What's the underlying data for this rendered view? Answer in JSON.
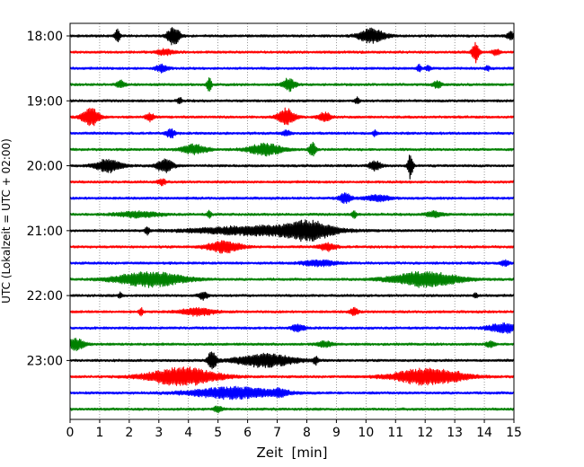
{
  "chart_data": {
    "type": "line",
    "title": "",
    "xlabel": "Zeit  [min]",
    "ylabel": "UTC (Lokalzeit = UTC + 02:00)",
    "xlim": [
      0,
      15
    ],
    "x_ticks": [
      "0",
      "1",
      "2",
      "3",
      "4",
      "5",
      "6",
      "7",
      "8",
      "9",
      "10",
      "11",
      "12",
      "13",
      "14",
      "15"
    ],
    "y_tick_labels": [
      "18:00",
      "19:00",
      "20:00",
      "21:00",
      "22:00",
      "23:00"
    ],
    "grid": "vertical dotted",
    "trace_colors": [
      "#000000",
      "#ff0000",
      "#0000ff",
      "#008000"
    ],
    "series": [
      {
        "start": "18:00",
        "color": "#000000",
        "events": [
          [
            1.6,
            0.7,
            0.06
          ],
          [
            3.5,
            1.0,
            0.15
          ],
          [
            10.2,
            0.8,
            0.3
          ],
          [
            14.9,
            0.4,
            0.1
          ]
        ]
      },
      {
        "start": "18:15",
        "color": "#ff0000",
        "events": [
          [
            3.2,
            0.3,
            0.2
          ],
          [
            13.7,
            1.1,
            0.08
          ],
          [
            14.4,
            0.3,
            0.1
          ]
        ]
      },
      {
        "start": "18:30",
        "color": "#0000ff",
        "events": [
          [
            3.1,
            0.4,
            0.15
          ],
          [
            11.8,
            0.4,
            0.05
          ],
          [
            12.1,
            0.3,
            0.05
          ],
          [
            14.1,
            0.3,
            0.05
          ]
        ]
      },
      {
        "start": "18:45",
        "color": "#008000",
        "events": [
          [
            1.7,
            0.4,
            0.1
          ],
          [
            4.7,
            0.9,
            0.05
          ],
          [
            7.4,
            0.7,
            0.15
          ],
          [
            12.4,
            0.4,
            0.1
          ]
        ]
      },
      {
        "start": "19:00",
        "color": "#000000",
        "events": [
          [
            3.7,
            0.4,
            0.05
          ],
          [
            9.7,
            0.4,
            0.05
          ]
        ]
      },
      {
        "start": "19:15",
        "color": "#ff0000",
        "events": [
          [
            0.7,
            1.0,
            0.2
          ],
          [
            2.7,
            0.4,
            0.1
          ],
          [
            7.3,
            0.9,
            0.2
          ],
          [
            8.6,
            0.5,
            0.15
          ]
        ]
      },
      {
        "start": "19:30",
        "color": "#0000ff",
        "events": [
          [
            3.4,
            0.5,
            0.1
          ],
          [
            7.3,
            0.3,
            0.1
          ],
          [
            10.3,
            0.3,
            0.05
          ]
        ]
      },
      {
        "start": "19:45",
        "color": "#008000",
        "events": [
          [
            4.2,
            0.5,
            0.3
          ],
          [
            6.6,
            0.6,
            0.4
          ],
          [
            8.2,
            0.8,
            0.08
          ]
        ]
      },
      {
        "start": "20:00",
        "color": "#000000",
        "events": [
          [
            1.3,
            0.7,
            0.3
          ],
          [
            3.2,
            0.7,
            0.2
          ],
          [
            10.3,
            0.5,
            0.15
          ],
          [
            11.5,
            1.5,
            0.06
          ]
        ]
      },
      {
        "start": "20:15",
        "color": "#ff0000",
        "events": [
          [
            3.1,
            0.3,
            0.1
          ]
        ]
      },
      {
        "start": "20:30",
        "color": "#0000ff",
        "events": [
          [
            9.3,
            0.5,
            0.15
          ],
          [
            10.4,
            0.3,
            0.3
          ]
        ]
      },
      {
        "start": "20:45",
        "color": "#008000",
        "events": [
          [
            2.3,
            0.3,
            0.5
          ],
          [
            4.7,
            0.4,
            0.05
          ],
          [
            9.6,
            0.5,
            0.05
          ],
          [
            12.3,
            0.3,
            0.2
          ]
        ]
      },
      {
        "start": "21:00",
        "color": "#000000",
        "events": [
          [
            2.6,
            0.4,
            0.05
          ],
          [
            6.5,
            0.5,
            1.5
          ],
          [
            8.1,
            0.9,
            0.5
          ]
        ]
      },
      {
        "start": "21:15",
        "color": "#ff0000",
        "events": [
          [
            5.2,
            0.6,
            0.4
          ],
          [
            8.7,
            0.4,
            0.2
          ]
        ]
      },
      {
        "start": "21:30",
        "color": "#0000ff",
        "events": [
          [
            8.4,
            0.3,
            0.4
          ],
          [
            14.7,
            0.3,
            0.1
          ]
        ]
      },
      {
        "start": "21:45",
        "color": "#008000",
        "events": [
          [
            2.7,
            0.8,
            0.8
          ],
          [
            12.0,
            0.8,
            0.8
          ]
        ]
      },
      {
        "start": "22:00",
        "color": "#000000",
        "events": [
          [
            1.7,
            0.3,
            0.05
          ],
          [
            4.5,
            0.4,
            0.1
          ],
          [
            13.7,
            0.3,
            0.05
          ]
        ]
      },
      {
        "start": "22:15",
        "color": "#ff0000",
        "events": [
          [
            2.4,
            0.4,
            0.05
          ],
          [
            4.3,
            0.4,
            0.4
          ],
          [
            9.6,
            0.4,
            0.1
          ]
        ]
      },
      {
        "start": "22:30",
        "color": "#0000ff",
        "events": [
          [
            7.7,
            0.4,
            0.15
          ],
          [
            14.7,
            0.5,
            0.4
          ]
        ]
      },
      {
        "start": "22:45",
        "color": "#008000",
        "events": [
          [
            0.2,
            0.6,
            0.2
          ],
          [
            8.6,
            0.3,
            0.2
          ],
          [
            14.2,
            0.3,
            0.1
          ]
        ]
      },
      {
        "start": "23:00",
        "color": "#000000",
        "events": [
          [
            4.8,
            1.1,
            0.1
          ],
          [
            6.6,
            0.7,
            0.7
          ],
          [
            8.3,
            0.5,
            0.05
          ]
        ]
      },
      {
        "start": "23:15",
        "color": "#ff0000",
        "events": [
          [
            3.8,
            1.0,
            0.8
          ],
          [
            12.1,
            0.9,
            0.8
          ],
          [
            13.1,
            0.3,
            0.05
          ]
        ]
      },
      {
        "start": "23:30",
        "color": "#0000ff",
        "events": [
          [
            5.5,
            0.6,
            1.0
          ],
          [
            7.1,
            0.3,
            0.2
          ]
        ]
      },
      {
        "start": "23:45",
        "color": "#008000",
        "events": [
          [
            5.0,
            0.3,
            0.1
          ]
        ]
      }
    ]
  }
}
